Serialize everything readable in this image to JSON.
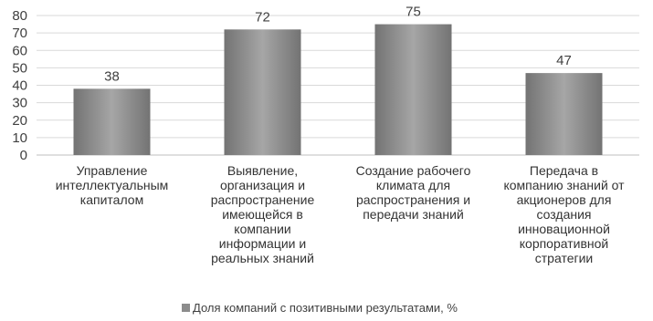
{
  "chart_data": {
    "type": "bar",
    "categories": [
      [
        "Управление",
        "интеллектуальным",
        "капиталом"
      ],
      [
        "Выявление,",
        "организация и",
        "распространение",
        "имеющейся в",
        "компании",
        "информации и",
        "реальных знаний"
      ],
      [
        "Создание рабочего",
        "климата для",
        "распространения и",
        "передачи знаний"
      ],
      [
        "Передача в",
        "компанию знаний от",
        "акционеров для",
        "создания",
        "инновационной",
        "корпоративной",
        "стратегии"
      ]
    ],
    "series": [
      {
        "name": "Доля компаний с позитивными результатами, %",
        "values": [
          38,
          72,
          75,
          47
        ]
      }
    ],
    "ylim": [
      0,
      80
    ],
    "yticks": [
      0,
      10,
      20,
      30,
      40,
      50,
      60,
      70,
      80
    ],
    "grid": true,
    "legend": "bottom",
    "colors": {
      "bar": "#8c8c8c",
      "bar_light": "#a6a6a6",
      "bar_dark": "#737373",
      "grid": "#d9d9d9",
      "legend_marker": "#8c8c8c"
    }
  }
}
